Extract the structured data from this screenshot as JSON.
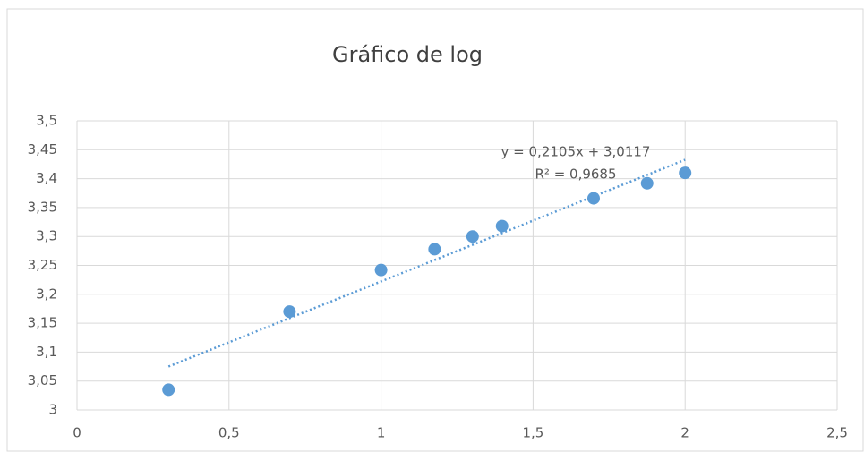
{
  "chart_data": {
    "type": "scatter",
    "title": "Gráfico de log",
    "series": [
      {
        "color": "#5b9bd5",
        "x": [
          0.301,
          0.699,
          1,
          1.176,
          1.301,
          1.398,
          1.699,
          1.875,
          2
        ],
        "values": [
          3.035,
          3.17,
          3.242,
          3.278,
          3.3,
          3.318,
          3.366,
          3.392,
          3.41
        ]
      }
    ],
    "trendline": {
      "slope": 0.2105,
      "intercept": 3.0117,
      "equation": "y = 0,2105x + 3,0117",
      "r_squared": "R² = 0,9685",
      "color": "#5b9bd5"
    },
    "xlim": [
      0,
      2.5
    ],
    "xticks": [
      0,
      {
        "value": 0.5,
        "label": "0,5"
      },
      1,
      {
        "value": 1.5,
        "label": "1,5"
      },
      2,
      {
        "value": 2.5,
        "label": "2,5"
      }
    ],
    "ylim": [
      3,
      3.5
    ],
    "yticks": [
      3,
      {
        "value": 3.05,
        "label": "3,05"
      },
      {
        "value": 3.1,
        "label": "3,1"
      },
      {
        "value": 3.15,
        "label": "3,15"
      },
      {
        "value": 3.2,
        "label": "3,2"
      },
      {
        "value": 3.25,
        "label": "3,25"
      },
      {
        "value": 3.3,
        "label": "3,3"
      },
      {
        "value": 3.35,
        "label": "3,35"
      },
      {
        "value": 3.4,
        "label": "3,4"
      },
      {
        "value": 3.45,
        "label": "3,45"
      },
      {
        "value": 3.5,
        "label": "3,5"
      }
    ],
    "grid": true
  }
}
